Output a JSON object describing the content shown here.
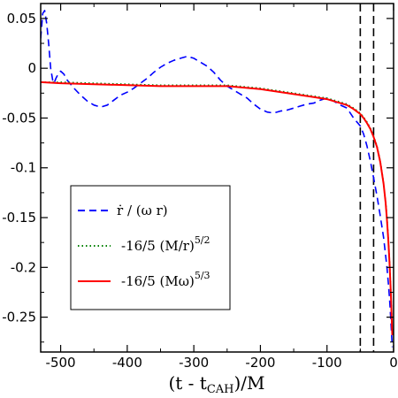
{
  "chart_data": {
    "type": "line",
    "title": "",
    "xlabel": {
      "main": "(t - t",
      "sub": "CAH",
      "tail": ")/M"
    },
    "ylabel": "",
    "xlim": [
      -530,
      0
    ],
    "ylim": [
      -0.285,
      0.065
    ],
    "xticks": [
      -500,
      -400,
      -300,
      -200,
      -100,
      0
    ],
    "xtick_labels": [
      "-500",
      "-400",
      "-300",
      "-200",
      "-100",
      "0"
    ],
    "yticks": [
      0.05,
      0,
      -0.05,
      -0.1,
      -0.15,
      -0.2,
      -0.25
    ],
    "ytick_labels": [
      "0.05",
      "0",
      "-0.05",
      "-0.1",
      "-0.15",
      "-0.2",
      "-0.25"
    ],
    "grid": false,
    "legend_position": "lower-left",
    "vlines": [
      -50,
      -30
    ],
    "series": [
      {
        "name": "ṙ / (ω r)",
        "legend": {
          "main": "ṙ / (ω r)",
          "sup": ""
        },
        "color": "#0000ff",
        "dash": "dashed",
        "x": [
          -530,
          -527,
          -524,
          -521,
          -518,
          -515,
          -512,
          -510,
          -507,
          -503,
          -500,
          -495,
          -490,
          -480,
          -470,
          -460,
          -450,
          -440,
          -430,
          -420,
          -410,
          -400,
          -390,
          -380,
          -370,
          -360,
          -350,
          -340,
          -330,
          -320,
          -310,
          -300,
          -290,
          -280,
          -270,
          -260,
          -250,
          -240,
          -230,
          -220,
          -210,
          -200,
          -190,
          -180,
          -170,
          -160,
          -150,
          -140,
          -130,
          -120,
          -110,
          -100,
          -90,
          -80,
          -70,
          -60,
          -50,
          -45,
          -40,
          -35,
          -30,
          -25,
          -20,
          -15,
          -12,
          -10,
          -8,
          -6,
          -4,
          -2
        ],
        "y": [
          0.03,
          0.055,
          0.058,
          0.045,
          0.025,
          0.0,
          -0.012,
          -0.015,
          -0.01,
          -0.005,
          -0.003,
          -0.006,
          -0.012,
          -0.02,
          -0.027,
          -0.033,
          -0.037,
          -0.039,
          -0.037,
          -0.032,
          -0.027,
          -0.024,
          -0.02,
          -0.015,
          -0.01,
          -0.004,
          0.001,
          0.005,
          0.008,
          0.01,
          0.012,
          0.01,
          0.006,
          0.002,
          -0.004,
          -0.012,
          -0.018,
          -0.022,
          -0.026,
          -0.03,
          -0.036,
          -0.041,
          -0.044,
          -0.045,
          -0.043,
          -0.042,
          -0.04,
          -0.038,
          -0.036,
          -0.035,
          -0.032,
          -0.03,
          -0.033,
          -0.037,
          -0.04,
          -0.05,
          -0.058,
          -0.066,
          -0.078,
          -0.093,
          -0.11,
          -0.128,
          -0.148,
          -0.17,
          -0.188,
          -0.2,
          -0.215,
          -0.232,
          -0.255,
          -0.28
        ]
      },
      {
        "name": "-16/5 (M/r)",
        "legend": {
          "main": "-16/5 (M/r)",
          "sup": "5/2"
        },
        "color": "#008000",
        "dash": "dotted",
        "x": [
          -530,
          -500,
          -450,
          -400,
          -350,
          -300,
          -250,
          -200,
          -150,
          -120,
          -100,
          -80,
          -70,
          -60,
          -50,
          -45,
          -40,
          -35,
          -30,
          -25,
          -20,
          -15,
          -12,
          -10,
          -8,
          -6,
          -4,
          -2
        ],
        "y": [
          -0.014,
          -0.014,
          -0.015,
          -0.016,
          -0.017,
          -0.017,
          -0.017,
          -0.02,
          -0.025,
          -0.028,
          -0.03,
          -0.034,
          -0.036,
          -0.04,
          -0.045,
          -0.049,
          -0.054,
          -0.06,
          -0.068,
          -0.078,
          -0.093,
          -0.115,
          -0.133,
          -0.15,
          -0.17,
          -0.195,
          -0.225,
          -0.265
        ]
      },
      {
        "name": "-16/5 (Mω)",
        "legend": {
          "main": "-16/5 (Mω)",
          "sup": "5/3"
        },
        "color": "#ff0000",
        "dash": "solid",
        "x": [
          -530,
          -500,
          -450,
          -400,
          -350,
          -300,
          -250,
          -200,
          -150,
          -120,
          -100,
          -80,
          -70,
          -60,
          -50,
          -45,
          -40,
          -35,
          -30,
          -25,
          -20,
          -15,
          -12,
          -10,
          -8,
          -6,
          -4,
          -2
        ],
        "y": [
          -0.014,
          -0.015,
          -0.016,
          -0.017,
          -0.018,
          -0.018,
          -0.018,
          -0.021,
          -0.026,
          -0.029,
          -0.031,
          -0.035,
          -0.037,
          -0.041,
          -0.046,
          -0.05,
          -0.055,
          -0.061,
          -0.069,
          -0.079,
          -0.094,
          -0.116,
          -0.135,
          -0.152,
          -0.172,
          -0.197,
          -0.228,
          -0.268
        ]
      }
    ]
  }
}
